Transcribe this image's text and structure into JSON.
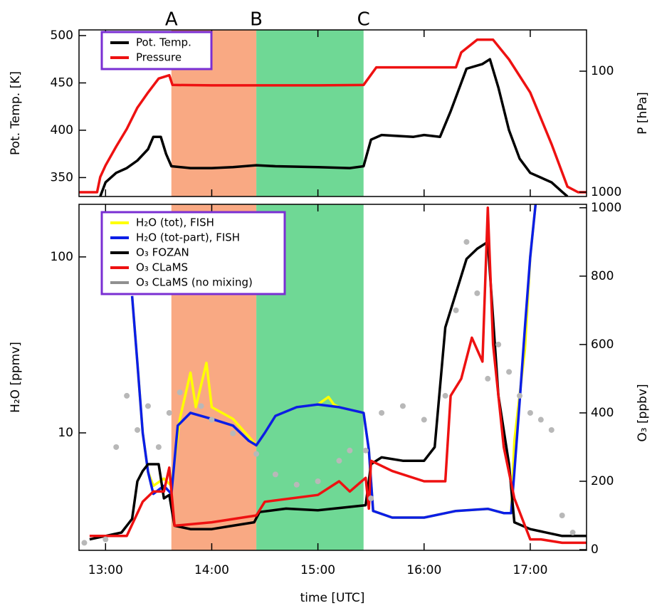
{
  "chart_data": [
    {
      "type": "line",
      "ylabel": "Pot. Temp. [K]",
      "y2label": "P [hPa]",
      "xlim": [
        12.75,
        17.53
      ],
      "ylim": [
        330,
        506
      ],
      "yticks": [
        350,
        400,
        450,
        500
      ],
      "y2lim": [
        1085,
        45.6
      ],
      "y2ticks": [
        100,
        1000
      ],
      "y2log": true,
      "markers": [
        {
          "label": "A",
          "x": 13.62
        },
        {
          "label": "B",
          "x": 14.42
        },
        {
          "label": "C",
          "x": 15.43
        }
      ],
      "shaded": [
        {
          "from": 13.62,
          "to": 14.42,
          "color": "#f9a983"
        },
        {
          "from": 14.42,
          "to": 15.43,
          "color": "#6fd895"
        }
      ],
      "legend": "upper left",
      "series": [
        {
          "name": "Pot. Temp.",
          "color": "#000000",
          "x": [
            12.95,
            13.0,
            13.1,
            13.2,
            13.3,
            13.4,
            13.45,
            13.52,
            13.57,
            13.62,
            13.8,
            14.0,
            14.2,
            14.42,
            14.6,
            15.0,
            15.3,
            15.43,
            15.5,
            15.6,
            15.9,
            16.0,
            16.15,
            16.25,
            16.4,
            16.55,
            16.62,
            16.7,
            16.8,
            16.9,
            17.0,
            17.2,
            17.3,
            17.35
          ],
          "values": [
            330,
            345,
            355,
            360,
            368,
            380,
            393,
            393,
            375,
            362,
            360,
            360,
            361,
            363,
            362,
            361,
            360,
            362,
            390,
            395,
            393,
            395,
            393,
            420,
            465,
            470,
            475,
            445,
            400,
            370,
            355,
            345,
            335,
            330
          ]
        },
        {
          "name": "Pressure",
          "color": "#ee1111",
          "axis": "y2",
          "x": [
            12.75,
            12.92,
            12.95,
            13.0,
            13.1,
            13.2,
            13.3,
            13.4,
            13.5,
            13.6,
            13.63,
            14.0,
            14.5,
            15.0,
            15.43,
            15.55,
            16.3,
            16.35,
            16.5,
            16.65,
            16.8,
            17.0,
            17.2,
            17.35,
            17.45,
            17.53
          ],
          "values": [
            1000,
            1000,
            750,
            600,
            420,
            300,
            200,
            150,
            115,
            108,
            130,
            131,
            131,
            131,
            130,
            93,
            93,
            70,
            55,
            55,
            80,
            150,
            400,
            900,
            1000,
            1000
          ]
        }
      ]
    },
    {
      "type": "line",
      "xlabel": "time [UTC]",
      "ylabel": "H₂O [ppmv]",
      "y2label": "O₃ [ppbv]",
      "xlim": [
        12.75,
        17.53
      ],
      "xticks": [
        {
          "value": 13,
          "label": "13:00"
        },
        {
          "value": 14,
          "label": "14:00"
        },
        {
          "value": 15,
          "label": "15:00"
        },
        {
          "value": 16,
          "label": "16:00"
        },
        {
          "value": 17,
          "label": "17:00"
        }
      ],
      "ylim": [
        2.15,
        199
      ],
      "yticks": [
        10,
        100
      ],
      "ylog": true,
      "y2lim": [
        -2,
        1010
      ],
      "y2ticks": [
        0,
        200,
        400,
        600,
        800,
        1000
      ],
      "legend": "upper left",
      "series": [
        {
          "name": "H₂O (tot), FISH",
          "color": "#ffff00",
          "x": [
            13.25,
            13.3,
            13.35,
            13.4,
            13.45,
            13.55,
            13.62,
            13.7,
            13.8,
            13.85,
            13.95,
            14.0,
            14.2,
            14.35,
            14.42,
            14.5,
            14.6,
            14.8,
            15.0,
            15.1,
            15.15,
            15.2,
            15.43,
            15.48,
            15.52,
            15.7,
            16.0,
            16.3,
            16.6,
            16.75,
            16.82,
            16.85,
            16.95,
            17.0,
            17.05
          ],
          "values": [
            60,
            25,
            10,
            6,
            5,
            5.5,
            5,
            12,
            22,
            14,
            25,
            14,
            12,
            9.5,
            8.5,
            10,
            12.5,
            14,
            14.5,
            16,
            14.5,
            14,
            13,
            8,
            3.6,
            3.3,
            3.3,
            3.6,
            3.7,
            3.5,
            3.5,
            9,
            30,
            100,
            199
          ]
        },
        {
          "name": "H₂O (tot-part), FISH",
          "color": "#0a1ee6",
          "x": [
            13.25,
            13.3,
            13.35,
            13.4,
            13.45,
            13.55,
            13.62,
            13.68,
            13.8,
            14.0,
            14.2,
            14.35,
            14.42,
            14.5,
            14.6,
            14.8,
            15.0,
            15.2,
            15.43,
            15.48,
            15.52,
            15.7,
            16.0,
            16.3,
            16.6,
            16.75,
            16.82,
            16.85,
            16.9,
            16.95,
            17.0,
            17.05
          ],
          "values": [
            60,
            25,
            10,
            6,
            4.5,
            5,
            4.5,
            11,
            13,
            12,
            11,
            9,
            8.5,
            10,
            12.5,
            14,
            14.5,
            14,
            13,
            8,
            3.6,
            3.3,
            3.3,
            3.6,
            3.7,
            3.5,
            3.5,
            6,
            15,
            40,
            100,
            199
          ]
        },
        {
          "name": "O₃ FOZAN",
          "color": "#000000",
          "axis": "y2",
          "x": [
            12.85,
            13.0,
            13.15,
            13.25,
            13.3,
            13.35,
            13.4,
            13.5,
            13.55,
            13.6,
            13.65,
            13.8,
            14.0,
            14.2,
            14.4,
            14.45,
            14.7,
            15.0,
            15.3,
            15.45,
            15.5,
            15.6,
            15.8,
            16.0,
            16.1,
            16.2,
            16.3,
            16.4,
            16.5,
            16.6,
            16.7,
            16.8,
            16.85,
            17.0,
            17.3,
            17.53
          ],
          "values": [
            30,
            40,
            50,
            90,
            200,
            230,
            250,
            250,
            150,
            160,
            70,
            60,
            60,
            70,
            80,
            110,
            120,
            115,
            125,
            130,
            250,
            270,
            260,
            260,
            300,
            650,
            750,
            850,
            880,
            900,
            450,
            250,
            80,
            60,
            40,
            40
          ]
        },
        {
          "name": "O₃ CLaMS",
          "color": "#ee1111",
          "axis": "y2",
          "x": [
            12.85,
            13.2,
            13.35,
            13.45,
            13.55,
            13.6,
            13.65,
            14.0,
            14.42,
            14.5,
            15.0,
            15.2,
            15.3,
            15.45,
            15.48,
            15.5,
            15.7,
            16.0,
            16.2,
            16.25,
            16.35,
            16.45,
            16.55,
            16.6,
            16.65,
            16.75,
            16.85,
            17.0,
            17.1,
            17.3,
            17.53
          ],
          "values": [
            40,
            40,
            140,
            170,
            170,
            240,
            70,
            80,
            100,
            140,
            160,
            200,
            170,
            210,
            120,
            260,
            230,
            200,
            200,
            450,
            500,
            620,
            550,
            1000,
            600,
            300,
            150,
            30,
            30,
            20,
            20
          ]
        },
        {
          "name": "O₃ CLaMS (no mixing)",
          "color": "#b8b8b8",
          "axis": "y2",
          "marker": "dots",
          "x": [
            12.8,
            13.0,
            13.1,
            13.2,
            13.3,
            13.4,
            13.5,
            13.6,
            13.7,
            13.9,
            14.0,
            14.2,
            14.42,
            14.6,
            14.8,
            15.0,
            15.2,
            15.3,
            15.45,
            15.5,
            15.6,
            15.8,
            16.0,
            16.2,
            16.3,
            16.4,
            16.5,
            16.6,
            16.7,
            16.8,
            16.9,
            17.0,
            17.1,
            17.2,
            17.3,
            17.4
          ],
          "values": [
            20,
            30,
            300,
            450,
            350,
            420,
            300,
            400,
            460,
            420,
            380,
            340,
            280,
            220,
            190,
            200,
            260,
            290,
            290,
            150,
            400,
            420,
            380,
            450,
            700,
            900,
            750,
            500,
            600,
            520,
            450,
            400,
            380,
            350,
            100,
            50
          ]
        }
      ]
    }
  ]
}
